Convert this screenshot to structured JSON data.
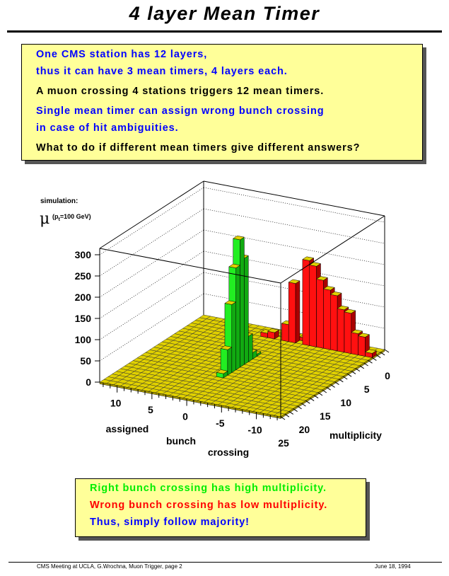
{
  "title": "4 layer Mean Timer",
  "top_box": {
    "lines": [
      {
        "text": "One CMS station has 12 layers,",
        "color": "blue"
      },
      {
        "text": "thus it can have 3 mean timers, 4 layers each.",
        "color": "blue"
      },
      {
        "text": "A muon crossing 4 stations triggers 12 mean timers.",
        "color": "black"
      },
      {
        "text": "Single mean timer can assign wrong bunch crossing",
        "color": "blue"
      },
      {
        "text": "in case of hit ambiguities.",
        "color": "blue"
      },
      {
        "text": "What to do if different mean timers give different answers?",
        "color": "black"
      }
    ]
  },
  "bottom_box": {
    "lines": [
      {
        "text": "Right bunch crossing has high multiplicity.",
        "color": "green"
      },
      {
        "text": "Wrong bunch crossing has low multiplicity.",
        "color": "red"
      },
      {
        "text": "Thus, simply follow majority!",
        "color": "blue"
      }
    ]
  },
  "chart_data": {
    "type": "lego3d",
    "annotation_line1": "simulation:",
    "annotation_mu": "μ",
    "annotation_line2": "(p",
    "annotation_sub": "t",
    "annotation_line3": "=100 GeV)",
    "xlabel_parts": [
      "assigned",
      "bunch",
      "crossing"
    ],
    "ylabel": "multiplicity",
    "x_range": [
      -13.5,
      12.5
    ],
    "y_range": [
      0,
      25
    ],
    "z_range": [
      0,
      315
    ],
    "x_ticks": [
      10,
      5,
      0,
      -5,
      -10
    ],
    "y_ticks": [
      0,
      5,
      10,
      15,
      20,
      25
    ],
    "z_ticks": [
      0,
      50,
      100,
      150,
      200,
      250,
      300
    ],
    "colors": {
      "floor": "#d8d800",
      "floor_top": "#e0d000",
      "correct": "#22ee22",
      "wrong": "#ff1010"
    },
    "series": [
      {
        "name": "correct",
        "bars": [
          {
            "x": 0,
            "y": 8,
            "z": 5
          },
          {
            "x": 0,
            "y": 9,
            "z": 15
          },
          {
            "x": 0,
            "y": 10,
            "z": 60
          },
          {
            "x": 0,
            "y": 11,
            "z": 250
          },
          {
            "x": 0,
            "y": 12,
            "z": 300
          },
          {
            "x": 0,
            "y": 13,
            "z": 240
          },
          {
            "x": 0,
            "y": 14,
            "z": 160
          },
          {
            "x": 0,
            "y": 15,
            "z": 60
          },
          {
            "x": 0,
            "y": 16,
            "z": 10
          }
        ]
      },
      {
        "name": "wrong",
        "bars": [
          {
            "x": 2,
            "y": 2,
            "z": 10
          },
          {
            "x": 1,
            "y": 2,
            "z": 15
          },
          {
            "x": -1,
            "y": 2,
            "z": 40
          },
          {
            "x": -2,
            "y": 2,
            "z": 140
          },
          {
            "x": -4,
            "y": 2,
            "z": 200
          },
          {
            "x": -5,
            "y": 2,
            "z": 190
          },
          {
            "x": -6,
            "y": 2,
            "z": 160
          },
          {
            "x": -7,
            "y": 2,
            "z": 140
          },
          {
            "x": -8,
            "y": 2,
            "z": 130
          },
          {
            "x": -9,
            "y": 2,
            "z": 100
          },
          {
            "x": -10,
            "y": 2,
            "z": 95
          },
          {
            "x": -11,
            "y": 2,
            "z": 50
          },
          {
            "x": -12,
            "y": 2,
            "z": 45
          },
          {
            "x": -13,
            "y": 2,
            "z": 10
          },
          {
            "x": -3,
            "y": 1,
            "z": 8
          },
          {
            "x": -6,
            "y": 1,
            "z": 6
          },
          {
            "x": -9,
            "y": 1,
            "z": 5
          }
        ]
      }
    ]
  },
  "footer": {
    "left": "CMS Meeting at UCLA, G.Wrochna, Muon Trigger, page 2",
    "right": "June 18, 1994"
  }
}
